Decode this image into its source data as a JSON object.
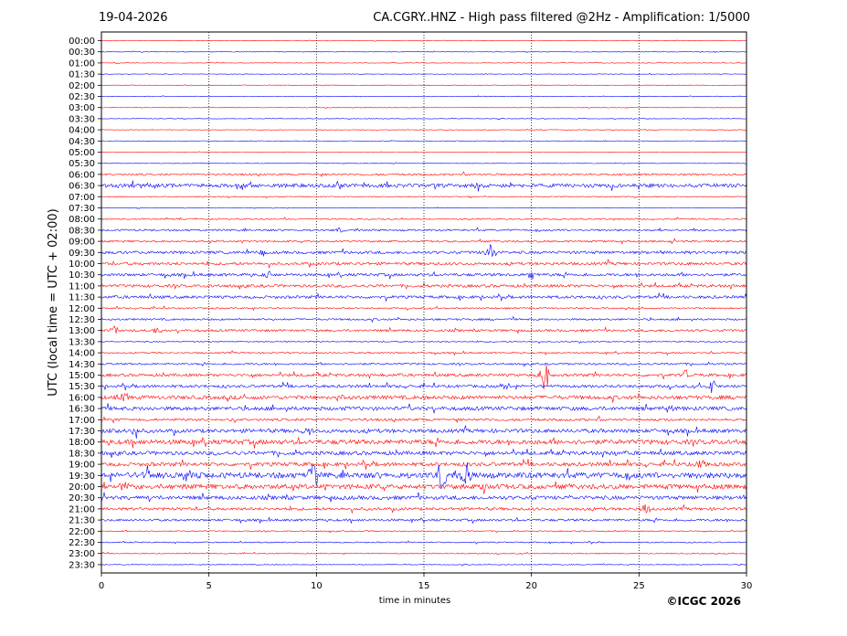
{
  "header": {
    "date": "19-04-2026",
    "title": "CA.CGRY..HNZ - High pass filtered @2Hz - Amplification: 1/5000"
  },
  "footer": {
    "copyright": "©ICGC 2026"
  },
  "chart_data": {
    "type": "line",
    "title": "CA.CGRY..HNZ - High pass filtered @2Hz - Amplification: 1/5000",
    "xlabel": "time in minutes",
    "ylabel": "UTC (local time = UTC + 02:00)",
    "xlim": [
      0,
      30
    ],
    "xticks": [
      0,
      5,
      10,
      15,
      20,
      25,
      30
    ],
    "grid": "vertical dotted at every 5 minutes",
    "colors": {
      "even": "#ff0000",
      "odd": "#0000ff"
    },
    "rows": [
      "00:00",
      "00:30",
      "01:00",
      "01:30",
      "02:00",
      "02:30",
      "03:00",
      "03:30",
      "04:00",
      "04:30",
      "05:00",
      "05:30",
      "06:00",
      "06:30",
      "07:00",
      "07:30",
      "08:00",
      "08:30",
      "09:00",
      "09:30",
      "10:00",
      "10:30",
      "11:00",
      "11:30",
      "12:00",
      "12:30",
      "13:00",
      "13:30",
      "14:00",
      "14:30",
      "15:00",
      "15:30",
      "16:00",
      "16:30",
      "17:00",
      "17:30",
      "18:00",
      "18:30",
      "19:00",
      "19:30",
      "20:00",
      "20:30",
      "21:00",
      "21:30",
      "22:00",
      "22:30",
      "23:00",
      "23:30"
    ],
    "noise": [
      0.3,
      0.3,
      0.3,
      0.3,
      0.3,
      0.3,
      0.3,
      0.3,
      0.3,
      0.3,
      0.3,
      0.3,
      1,
      2,
      0.5,
      0.3,
      0.7,
      1,
      1,
      1.5,
      1.5,
      1.5,
      1.5,
      1.5,
      0.8,
      1,
      1.2,
      0.6,
      0.8,
      1,
      1.5,
      1.5,
      2,
      2,
      1.3,
      2,
      2.5,
      2,
      2,
      3,
      2.5,
      2,
      1.5,
      1.2,
      0.6,
      0.6,
      0.5,
      0.4
    ],
    "events": [
      {
        "row": 13,
        "t": 6.5,
        "amp": 5
      },
      {
        "row": 13,
        "t": 17.5,
        "amp": 5
      },
      {
        "row": 17,
        "t": 11,
        "amp": 3
      },
      {
        "row": 19,
        "t": 18.1,
        "amp": 8
      },
      {
        "row": 19,
        "t": 7.5,
        "amp": 4
      },
      {
        "row": 21,
        "t": 20,
        "amp": 4
      },
      {
        "row": 21,
        "t": 7.7,
        "amp": 5
      },
      {
        "row": 26,
        "t": 0.6,
        "amp": 4
      },
      {
        "row": 26,
        "t": 2.7,
        "amp": 4
      },
      {
        "row": 30,
        "t": 20.6,
        "amp": 20
      },
      {
        "row": 30,
        "t": 27.2,
        "amp": 6
      },
      {
        "row": 31,
        "t": 18.8,
        "amp": 5
      },
      {
        "row": 31,
        "t": 28.4,
        "amp": 8
      },
      {
        "row": 32,
        "t": 1,
        "amp": 6
      },
      {
        "row": 32,
        "t": 11,
        "amp": 4
      },
      {
        "row": 33,
        "t": 26.4,
        "amp": 6
      },
      {
        "row": 35,
        "t": 1.5,
        "amp": 6
      },
      {
        "row": 35,
        "t": 9.5,
        "amp": 7
      },
      {
        "row": 37,
        "t": 23.8,
        "amp": 4
      },
      {
        "row": 38,
        "t": 27.8,
        "amp": 5
      },
      {
        "row": 39,
        "t": 9.8,
        "amp": 18
      },
      {
        "row": 39,
        "t": 15.8,
        "amp": 16
      },
      {
        "row": 39,
        "t": 17,
        "amp": 14
      },
      {
        "row": 39,
        "t": 4,
        "amp": 8
      },
      {
        "row": 39,
        "t": 2.1,
        "amp": 6
      },
      {
        "row": 40,
        "t": 17.8,
        "amp": 7
      },
      {
        "row": 40,
        "t": 1.1,
        "amp": 5
      },
      {
        "row": 41,
        "t": 2.1,
        "amp": 5
      },
      {
        "row": 42,
        "t": 25.3,
        "amp": 7
      }
    ]
  }
}
